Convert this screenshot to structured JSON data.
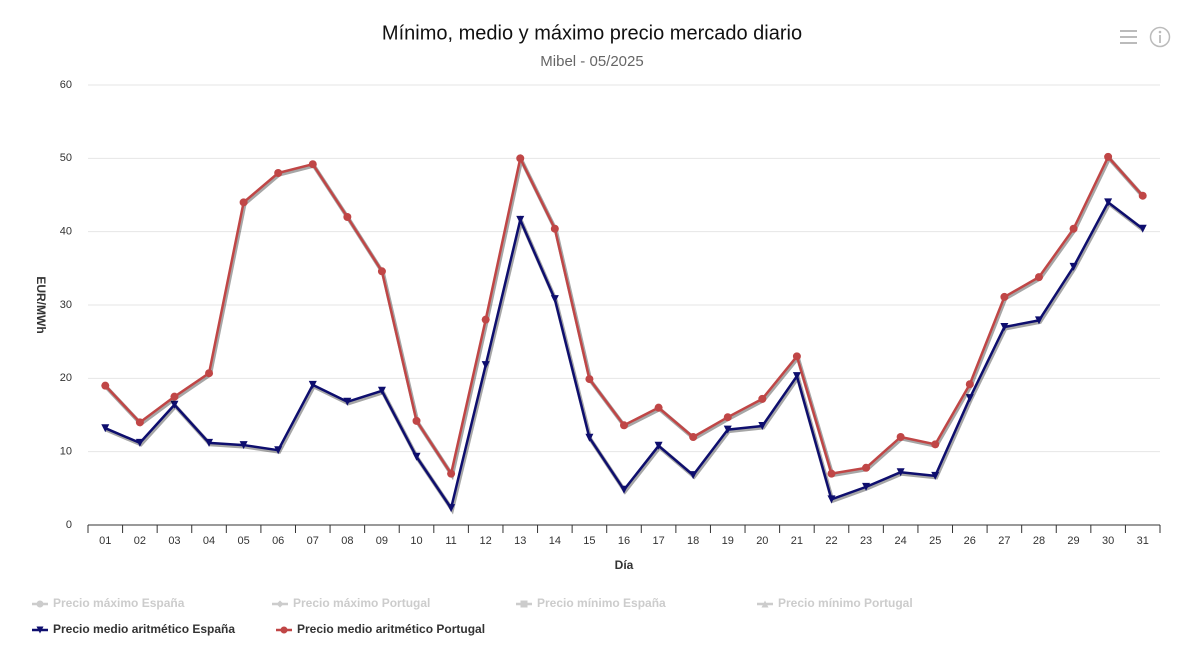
{
  "chart_data": {
    "type": "line",
    "title": "Mínimo, medio y máximo precio mercado diario",
    "subtitle": "Mibel - 05/2025",
    "y_label": "EUR/MWh",
    "x_label": "Día",
    "categories": [
      "01",
      "02",
      "03",
      "04",
      "05",
      "06",
      "07",
      "08",
      "09",
      "10",
      "11",
      "12",
      "13",
      "14",
      "15",
      "16",
      "17",
      "18",
      "19",
      "20",
      "21",
      "22",
      "23",
      "24",
      "25",
      "26",
      "27",
      "28",
      "29",
      "30",
      "31"
    ],
    "ylim": [
      0,
      60
    ],
    "yticks": [
      0,
      10,
      20,
      30,
      40,
      50,
      60
    ],
    "grid": true,
    "legend": "bottom",
    "series": [
      {
        "name": "Precio máximo España",
        "color": "#cccccc",
        "marker": "circle",
        "visible": false
      },
      {
        "name": "Precio máximo Portugal",
        "color": "#cccccc",
        "marker": "diamond",
        "visible": false
      },
      {
        "name": "Precio mínimo España",
        "color": "#cccccc",
        "marker": "square",
        "visible": false
      },
      {
        "name": "Precio mínimo Portugal",
        "color": "#cccccc",
        "marker": "triangle",
        "visible": false
      },
      {
        "name": "Precio medio aritmético España",
        "color": "#0e0e6e",
        "marker": "triangle-down",
        "visible": true,
        "values": [
          13.2,
          11.2,
          16.4,
          11.2,
          10.9,
          10.2,
          19.1,
          16.8,
          18.3,
          9.3,
          2.3,
          21.8,
          41.6,
          30.8,
          11.9,
          4.8,
          10.8,
          6.8,
          13.0,
          13.5,
          20.3,
          3.5,
          5.2,
          7.2,
          6.7,
          17.3,
          27.0,
          27.9,
          35.2,
          44.0,
          40.4
        ]
      },
      {
        "name": "Precio medio aritmético Portugal",
        "color": "#c04646",
        "marker": "circle",
        "visible": true,
        "values": [
          19.0,
          14.0,
          17.5,
          20.7,
          44.0,
          48.0,
          49.2,
          42.0,
          34.6,
          14.2,
          7.0,
          28.0,
          50.0,
          40.4,
          19.9,
          13.6,
          16.0,
          12.0,
          14.7,
          17.2,
          23.0,
          7.0,
          7.8,
          12.0,
          11.0,
          19.2,
          31.1,
          33.8,
          40.4,
          50.2,
          44.9
        ]
      }
    ]
  }
}
